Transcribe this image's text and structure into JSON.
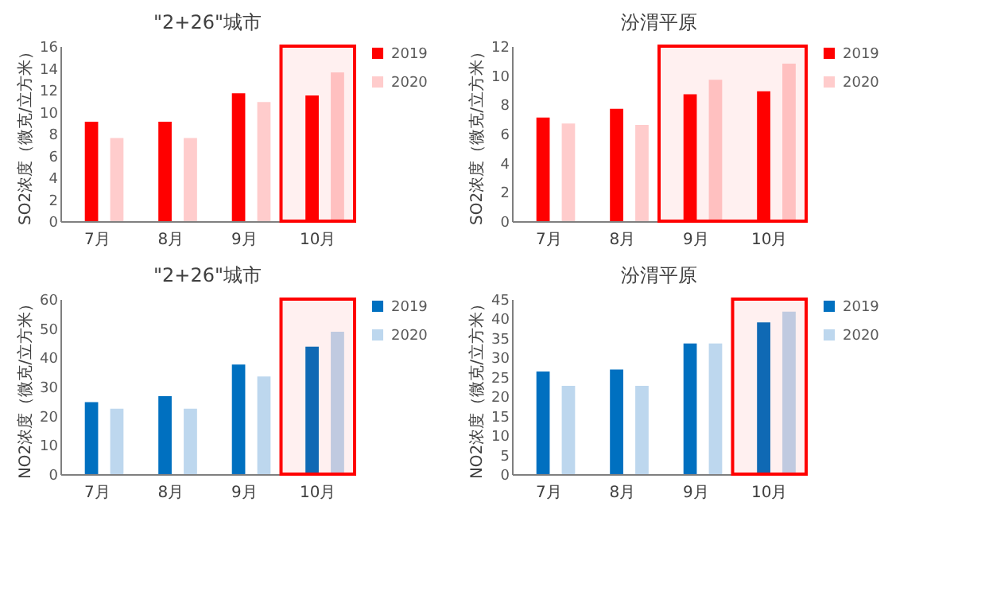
{
  "chart_data": [
    {
      "type": "bar",
      "title": "\"2+26\"城市",
      "ylabel": "SO2浓度（微克/立方米）",
      "categories": [
        "7月",
        "8月",
        "9月",
        "10月"
      ],
      "series": [
        {
          "name": "2019",
          "color": "#ff0000",
          "values": [
            9.1,
            9.1,
            11.7,
            11.5
          ]
        },
        {
          "name": "2020",
          "color": "#ffcccc",
          "values": [
            7.6,
            7.6,
            10.9,
            13.6
          ]
        }
      ],
      "ylim": [
        0,
        16
      ],
      "yticks": [
        0,
        2,
        4,
        6,
        8,
        10,
        12,
        14,
        16
      ],
      "legend": "right",
      "bands": [
        {
          "axis": "x",
          "from": "10月",
          "to": "10月",
          "color": "#ff0000"
        }
      ]
    },
    {
      "type": "bar",
      "title": "汾渭平原",
      "ylabel": "SO2浓度（微克/立方米）",
      "categories": [
        "7月",
        "8月",
        "9月",
        "10月"
      ],
      "series": [
        {
          "name": "2019",
          "color": "#ff0000",
          "values": [
            7.1,
            7.7,
            8.7,
            8.9
          ]
        },
        {
          "name": "2020",
          "color": "#ffcccc",
          "values": [
            6.7,
            6.6,
            9.7,
            10.8
          ]
        }
      ],
      "ylim": [
        0,
        12
      ],
      "yticks": [
        0,
        2,
        4,
        6,
        8,
        10,
        12
      ],
      "legend": "right",
      "bands": [
        {
          "axis": "x",
          "from": "9月",
          "to": "10月",
          "color": "#ff0000"
        }
      ]
    },
    {
      "type": "bar",
      "title": "\"2+26\"城市",
      "ylabel": "NO2浓度（微克/立方米）",
      "categories": [
        "7月",
        "8月",
        "9月",
        "10月"
      ],
      "series": [
        {
          "name": "2019",
          "color": "#0070c0",
          "values": [
            24.7,
            26.7,
            37.6,
            43.7
          ]
        },
        {
          "name": "2020",
          "color": "#bdd7ee",
          "values": [
            22.4,
            22.4,
            33.5,
            48.8
          ]
        }
      ],
      "ylim": [
        0,
        60
      ],
      "yticks": [
        0,
        10,
        20,
        30,
        40,
        50,
        60
      ],
      "legend": "right",
      "bands": [
        {
          "axis": "x",
          "from": "10月",
          "to": "10月",
          "color": "#ff0000"
        }
      ]
    },
    {
      "type": "bar",
      "title": "汾渭平原",
      "ylabel": "NO2浓度（微克/立方米）",
      "categories": [
        "7月",
        "8月",
        "9月",
        "10月"
      ],
      "series": [
        {
          "name": "2019",
          "color": "#0070c0",
          "values": [
            26.4,
            26.9,
            33.6,
            39.0
          ]
        },
        {
          "name": "2020",
          "color": "#bdd7ee",
          "values": [
            22.7,
            22.7,
            33.6,
            41.8
          ]
        }
      ],
      "ylim": [
        0,
        45
      ],
      "yticks": [
        0,
        5,
        10,
        15,
        20,
        25,
        30,
        35,
        40,
        45
      ],
      "legend": "right",
      "bands": [
        {
          "axis": "x",
          "from": "10月",
          "to": "10月",
          "color": "#ff0000"
        }
      ]
    }
  ]
}
